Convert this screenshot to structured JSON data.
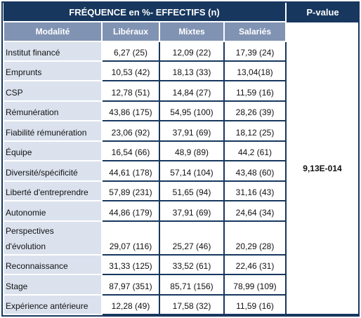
{
  "header": {
    "frequence": "FRÉQUENCE en %- EFFECTIFS (n)",
    "pvalue": "P-value"
  },
  "columns": [
    "Modalité",
    "Libéraux",
    "Mixtes",
    "Salariés"
  ],
  "pvalue_value": "9,13E-014",
  "rows": [
    {
      "label": "Institut financé",
      "liberaux": "6,27 (25)",
      "mixtes": "12,09 (22)",
      "salaries": "17,39 (24)"
    },
    {
      "label": "Emprunts",
      "liberaux": "10,53 (42)",
      "mixtes": "18,13 (33)",
      "salaries": "13,04(18)"
    },
    {
      "label": "CSP",
      "liberaux": "12,78 (51)",
      "mixtes": "14,84 (27)",
      "salaries": "11,59 (16)"
    },
    {
      "label": "Rémunération",
      "liberaux": "43,86 (175)",
      "mixtes": "54,95 (100)",
      "salaries": "28,26 (39)"
    },
    {
      "label": "Fiabilité rémunération",
      "liberaux": "23,06 (92)",
      "mixtes": "37,91 (69)",
      "salaries": "18,12 (25)"
    },
    {
      "label": "Équipe",
      "liberaux": "16,54 (66)",
      "mixtes": "48,9 (89)",
      "salaries": "44,2 (61)"
    },
    {
      "label": "Diversité/spécificité",
      "liberaux": "44,61 (178)",
      "mixtes": "57,14 (104)",
      "salaries": "43,48 (60)"
    },
    {
      "label": "Liberté d'entreprendre",
      "liberaux": "57,89 (231)",
      "mixtes": "51,65 (94)",
      "salaries": "31,16 (43)"
    },
    {
      "label": "Autonomie",
      "liberaux": "44,86 (179)",
      "mixtes": "37,91 (69)",
      "salaries": "24,64 (34)"
    },
    {
      "label_line1": "Perspectives",
      "label_line2": "d'évolution",
      "liberaux": "29,07 (116)",
      "mixtes": "25,27 (46)",
      "salaries": "20,29 (28)"
    },
    {
      "label": "Reconnaissance",
      "liberaux": "31,33 (125)",
      "mixtes": "33,52 (61)",
      "salaries": "22,46 (31)"
    },
    {
      "label": "Stage",
      "liberaux": "87,97 (351)",
      "mixtes": "85,71 (156)",
      "salaries": "78,99 (109)"
    },
    {
      "label": "Expérience antérieure",
      "liberaux": "12,28 (49)",
      "mixtes": "17,58 (32)",
      "salaries": "11,59 (16)"
    }
  ]
}
